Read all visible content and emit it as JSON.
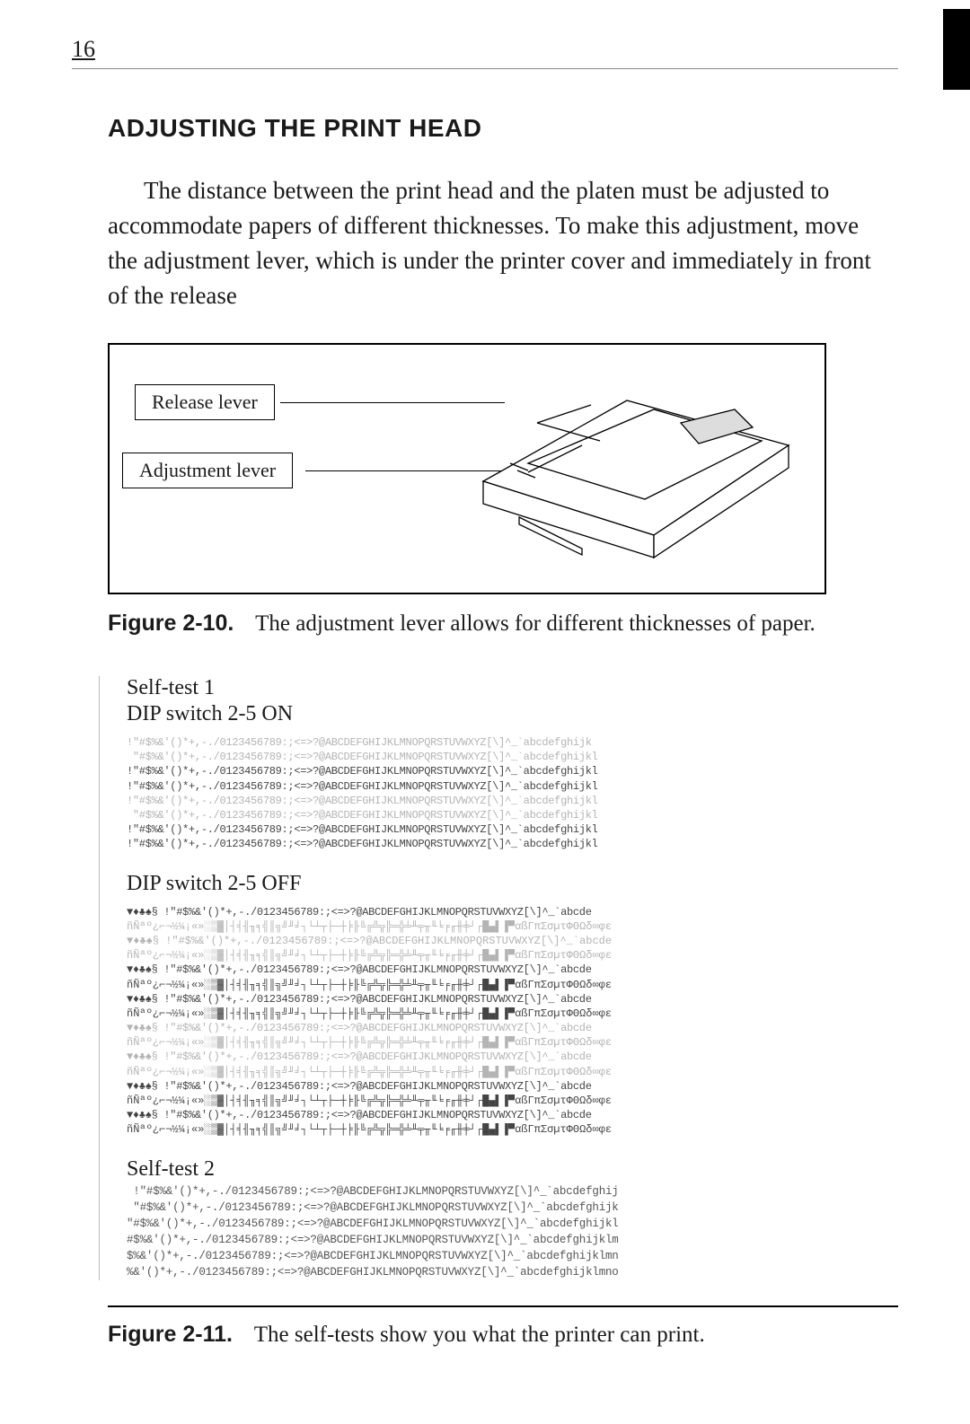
{
  "page_number": "16",
  "section_title": "ADJUSTING THE PRINT HEAD",
  "body_para": "The distance between the print head and the platen must be adjusted to accommodate papers of different thicknesses. To make this adjustment, move the adjustment lever, which is under the printer cover and immediately in front of the release",
  "figure10": {
    "release_label": "Release lever",
    "adjust_label": "Adjustment lever",
    "caption_num": "Figure 2-10.",
    "caption_text": "The adjustment lever allows for different thicknesses of paper."
  },
  "selftest1": {
    "heading": "Self-test 1",
    "dip_on": "DIP switch 2-5 ON",
    "dip_off": "DIP switch 2-5 OFF",
    "lines_on": [
      {
        "cls": "light",
        "t": "!\"#$%&'()*+,-./0123456789:;<=>?@ABCDEFGHIJKLMNOPQRSTUVWXYZ[\\]^_`abcdefghijk"
      },
      {
        "cls": "light",
        "t": " \"#$%&'()*+,-./0123456789:;<=>?@ABCDEFGHIJKLMNOPQRSTUVWXYZ[\\]^_`abcdefghijkl"
      },
      {
        "cls": "",
        "t": "!\"#$%&'()*+,-./0123456789:;<=>?@ABCDEFGHIJKLMNOPQRSTUVWXYZ[\\]^_`abcdefghijkl"
      },
      {
        "cls": "",
        "t": "!\"#$%&'()*+,-./0123456789:;<=>?@ABCDEFGHIJKLMNOPQRSTUVWXYZ[\\]^_`abcdefghijkl"
      },
      {
        "cls": "light",
        "t": "!\"#$%&'()*+,-./0123456789:;<=>?@ABCDEFGHIJKLMNOPQRSTUVWXYZ[\\]^_`abcdefghijkl"
      },
      {
        "cls": "light",
        "t": " \"#$%&'()*+,-./0123456789:;<=>?@ABCDEFGHIJKLMNOPQRSTUVWXYZ[\\]^_`abcdefghijkl"
      },
      {
        "cls": "",
        "t": "!\"#$%&'()*+,-./0123456789:;<=>?@ABCDEFGHIJKLMNOPQRSTUVWXYZ[\\]^_`abcdefghijkl"
      },
      {
        "cls": "",
        "t": "!\"#$%&'()*+,-./0123456789:;<=>?@ABCDEFGHIJKLMNOPQRSTUVWXYZ[\\]^_`abcdefghijkl"
      }
    ],
    "lines_off": [
      {
        "cls": "",
        "t": "▼♦♣♠§ !\"#$%&'()*+,-./0123456789:;<=>?@ABCDEFGHIJKLMNOPQRSTUVWXYZ[\\]^_`abcde"
      },
      {
        "cls": "light blocky",
        "t": "ñÑªº¿⌐¬½¼¡«»░▒▓│┤╡╢╖╕╣║╗╝╜╛┐└┴┬├─┼╞╟╚╔╩╦╠═╬╧╨╤╥╙╘╒╓╫╪┘┌█▄▌▐▀αßΓπΣσµτΦΘΩδ∞φε"
      },
      {
        "cls": "light blocky",
        "t": "▼♦♣♠§ !\"#$%&'()*+,-./0123456789:;<=>?@ABCDEFGHIJKLMNOPQRSTUVWXYZ[\\]^_`abcde"
      },
      {
        "cls": "light blocky",
        "t": "ñÑªº¿⌐¬½¼¡«»░▒▓│┤╡╢╖╕╣║╗╝╜╛┐└┴┬├─┼╞╟╚╔╩╦╠═╬╧╨╤╥╙╘╒╓╫╪┘┌█▄▌▐▀αßΓπΣσµτΦΘΩδ∞φε"
      },
      {
        "cls": "",
        "t": "▼♦♣♠§ !\"#$%&'()*+,-./0123456789:;<=>?@ABCDEFGHIJKLMNOPQRSTUVWXYZ[\\]^_`abcde"
      },
      {
        "cls": "blocky",
        "t": "ñÑªº¿⌐¬½¼¡«»░▒▓│┤╡╢╖╕╣║╗╝╜╛┐└┴┬├─┼╞╟╚╔╩╦╠═╬╧╨╤╥╙╘╒╓╫╪┘┌█▄▌▐▀αßΓπΣσµτΦΘΩδ∞φε"
      },
      {
        "cls": "",
        "t": "▼♦♣♠§ !\"#$%&'()*+,-./0123456789:;<=>?@ABCDEFGHIJKLMNOPQRSTUVWXYZ[\\]^_`abcde"
      },
      {
        "cls": "blocky",
        "t": "ñÑªº¿⌐¬½¼¡«»░▒▓│┤╡╢╖╕╣║╗╝╜╛┐└┴┬├─┼╞╟╚╔╩╦╠═╬╧╨╤╥╙╘╒╓╫╪┘┌█▄▌▐▀αßΓπΣσµτΦΘΩδ∞φε"
      },
      {
        "cls": "light",
        "t": "▼♦♣♠§ !\"#$%&'()*+,-./0123456789:;<=>?@ABCDEFGHIJKLMNOPQRSTUVWXYZ[\\]^_`abcde"
      },
      {
        "cls": "light blocky",
        "t": "ñÑªº¿⌐¬½¼¡«»░▒▓│┤╡╢╖╕╣║╗╝╜╛┐└┴┬├─┼╞╟╚╔╩╦╠═╬╧╨╤╥╙╘╒╓╫╪┘┌█▄▌▐▀αßΓπΣσµτΦΘΩδ∞φε"
      },
      {
        "cls": "light",
        "t": "▼♦♣♠§ !\"#$%&'()*+,-./0123456789:;<=>?@ABCDEFGHIJKLMNOPQRSTUVWXYZ[\\]^_`abcde"
      },
      {
        "cls": "light blocky",
        "t": "ñÑªº¿⌐¬½¼¡«»░▒▓│┤╡╢╖╕╣║╗╝╜╛┐└┴┬├─┼╞╟╚╔╩╦╠═╬╧╨╤╥╙╘╒╓╫╪┘┌█▄▌▐▀αßΓπΣσµτΦΘΩδ∞φε"
      },
      {
        "cls": "",
        "t": "▼♦♣♠§ !\"#$%&'()*+,-./0123456789:;<=>?@ABCDEFGHIJKLMNOPQRSTUVWXYZ[\\]^_`abcde"
      },
      {
        "cls": "blocky",
        "t": "ñÑªº¿⌐¬½¼¡«»░▒▓│┤╡╢╖╕╣║╗╝╜╛┐└┴┬├─┼╞╟╚╔╩╦╠═╬╧╨╤╥╙╘╒╓╫╪┘┌█▄▌▐▀αßΓπΣσµτΦΘΩδ∞φε"
      },
      {
        "cls": "",
        "t": "▼♦♣♠§ !\"#$%&'()*+,-./0123456789:;<=>?@ABCDEFGHIJKLMNOPQRSTUVWXYZ[\\]^_`abcde"
      },
      {
        "cls": "blocky",
        "t": "ñÑªº¿⌐¬½¼¡«»░▒▓│┤╡╢╖╕╣║╗╝╜╛┐└┴┬├─┼╞╟╚╔╩╦╠═╬╧╨╤╥╙╘╒╓╫╪┘┌█▄▌▐▀αßΓπΣσµτΦΘΩδ∞φε"
      }
    ]
  },
  "selftest2": {
    "heading": "Self-test 2",
    "lines": [
      " !\"#$%&'()*+,-./0123456789:;<=>?@ABCDEFGHIJKLMNOPQRSTUVWXYZ[\\]^_`abcdefghij",
      " \"#$%&'()*+,-./0123456789:;<=>?@ABCDEFGHIJKLMNOPQRSTUVWXYZ[\\]^_`abcdefghijk",
      "\"#$%&'()*+,-./0123456789:;<=>?@ABCDEFGHIJKLMNOPQRSTUVWXYZ[\\]^_`abcdefghijkl",
      "#$%&'()*+,-./0123456789:;<=>?@ABCDEFGHIJKLMNOPQRSTUVWXYZ[\\]^_`abcdefghijklm",
      "$%&'()*+,-./0123456789:;<=>?@ABCDEFGHIJKLMNOPQRSTUVWXYZ[\\]^_`abcdefghijklmn",
      "%&'()*+,-./0123456789:;<=>?@ABCDEFGHIJKLMNOPQRSTUVWXYZ[\\]^_`abcdefghijklmno"
    ]
  },
  "figure11": {
    "caption_num": "Figure 2-11.",
    "caption_text": "The self-tests show you what the printer can print."
  }
}
